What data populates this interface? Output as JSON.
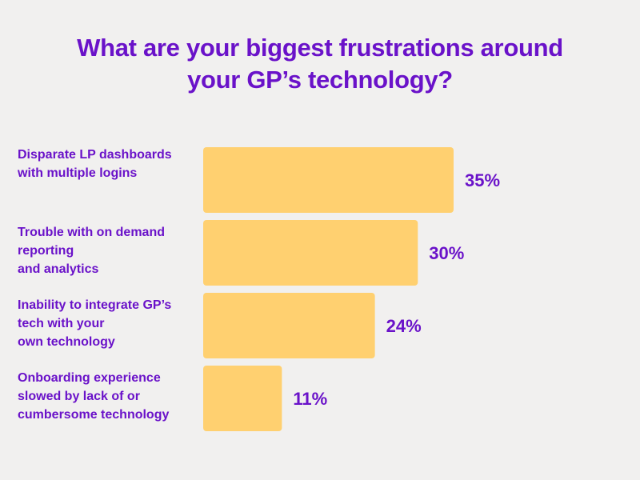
{
  "chart_data": {
    "type": "bar",
    "orientation": "horizontal",
    "title_lines": [
      "What are your biggest frustrations around",
      "your GP’s technology?"
    ],
    "categories": [
      [
        "Disparate LP dashboards",
        "with multiple logins"
      ],
      [
        "Trouble with  on demand",
        "reporting",
        "and analytics"
      ],
      [
        "Inability to integrate GP’s",
        "tech with your",
        "own technology"
      ],
      [
        "Onboarding experience",
        "slowed by lack of or",
        "cumbersome technology"
      ]
    ],
    "values": [
      35,
      30,
      24,
      11
    ],
    "value_labels": [
      "35%",
      "30%",
      "24%",
      "11%"
    ],
    "xlim": [
      0,
      35
    ],
    "grid": false,
    "legend": "none",
    "colors": {
      "bar": "#ffd070",
      "text": "#6a12c9",
      "background": "#f1f0ef"
    }
  }
}
